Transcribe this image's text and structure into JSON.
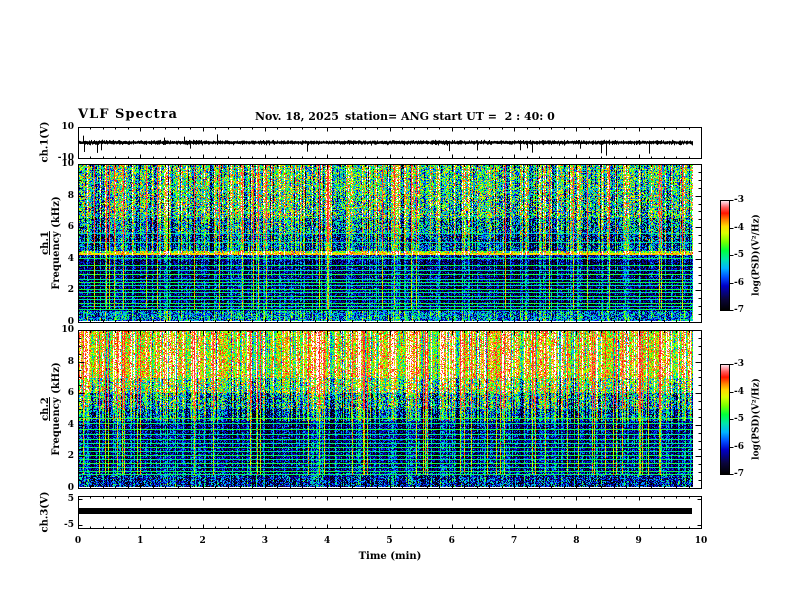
{
  "header": {
    "title": "VLF Spectra",
    "date": "Nov. 18, 2025",
    "station": "station= ANG",
    "start_ut": "start UT =  2 : 40: 0"
  },
  "axes": {
    "x_label": "Time (min)",
    "x_tick_labels": [
      "0",
      "1",
      "2",
      "3",
      "4",
      "5",
      "6",
      "7",
      "8",
      "9",
      "10"
    ],
    "ch1": {
      "label": "ch.1(V)",
      "tick_labels": [
        "10",
        "-10"
      ]
    },
    "spec1": {
      "label_channel": "ch.1",
      "label_axis": "Frequency (kHz)",
      "tick_labels": [
        "10",
        "8",
        "6",
        "4",
        "2",
        "0"
      ]
    },
    "spec2": {
      "label_channel": "ch.2",
      "label_axis": "Frequency (kHz)",
      "tick_labels": [
        "10",
        "8",
        "6",
        "4",
        "2",
        "0"
      ]
    },
    "ch3": {
      "label": "ch.3(V)",
      "tick_labels": [
        "5",
        "-5"
      ]
    }
  },
  "colorbars": [
    {
      "label": "log(PSD)(V²/Hz)",
      "tick_labels": [
        "-3",
        "-4",
        "-5",
        "-6",
        "-7"
      ]
    },
    {
      "label": "log(PSD)(V²/Hz)",
      "tick_labels": [
        "-3",
        "-4",
        "-5",
        "-6",
        "-7"
      ]
    }
  ],
  "chart_data": {
    "type": "heatmap",
    "title": "VLF Spectra",
    "subtitle": "Nov. 18, 2025, station ANG, start UT 2:40:0",
    "x": {
      "label": "Time (min)",
      "range": [
        0,
        10
      ],
      "data_end_min": 9.85,
      "major_tick": 1,
      "minor_tick": 0.2
    },
    "colorbar": {
      "label": "log(PSD)(V²/Hz)",
      "range": [
        -7,
        -3
      ]
    },
    "colormap_stops": [
      [
        0.0,
        "#000000"
      ],
      [
        0.1,
        "#0a053c"
      ],
      [
        0.22,
        "#0000c8"
      ],
      [
        0.3,
        "#0050ff"
      ],
      [
        0.38,
        "#00b4ff"
      ],
      [
        0.46,
        "#00e6aa"
      ],
      [
        0.54,
        "#00ff3c"
      ],
      [
        0.62,
        "#78ff00"
      ],
      [
        0.7,
        "#dcff00"
      ],
      [
        0.76,
        "#ffdc00"
      ],
      [
        0.82,
        "#ff8200"
      ],
      [
        0.88,
        "#ff1400"
      ],
      [
        0.93,
        "#ff5a5a"
      ],
      [
        0.97,
        "#ffb4be"
      ],
      [
        1.0,
        "#ffffff"
      ]
    ],
    "panels": [
      {
        "name": "ch.1(V)",
        "kind": "waveform",
        "y_range": [
          -10,
          10
        ],
        "baseline": 0,
        "noise_amp_V": 1.5,
        "down_spikes": 14,
        "up_spikes": 4
      },
      {
        "name": "ch.1 spectrogram",
        "kind": "spectrogram",
        "y_range_kHz": [
          0,
          10
        ],
        "psd_range": [
          -7,
          -3
        ],
        "seed": 42,
        "bands": [
          [
            10.0,
            8.2,
            0.52,
            0.18,
            0
          ],
          [
            8.2,
            6.6,
            0.5,
            0.2,
            0
          ],
          [
            6.6,
            5.6,
            0.36,
            0.18,
            0
          ],
          [
            5.6,
            4.9,
            0.26,
            0.16,
            0.02
          ],
          [
            4.9,
            4.5,
            0.3,
            0.14,
            0
          ],
          [
            4.5,
            4.2,
            0.66,
            0.1,
            0
          ],
          [
            4.2,
            3.9,
            0.22,
            0.12,
            0
          ],
          [
            3.9,
            0.65,
            0.13,
            0.11,
            0
          ],
          [
            0.65,
            0.0,
            0.34,
            0.14,
            0
          ]
        ],
        "h_lines": [
          [
            5.65,
            0.42,
            1
          ],
          [
            5.05,
            0.45,
            1
          ],
          [
            4.35,
            0.74,
            2
          ],
          [
            4.02,
            0.5,
            1
          ],
          [
            3.62,
            0.52,
            1
          ],
          [
            3.3,
            0.46,
            1
          ],
          [
            3.02,
            0.54,
            1
          ],
          [
            2.72,
            0.47,
            1
          ],
          [
            2.5,
            0.52,
            1
          ],
          [
            2.28,
            0.46,
            1
          ],
          [
            2.05,
            0.54,
            1
          ],
          [
            1.85,
            0.48,
            1
          ],
          [
            1.62,
            0.52,
            1
          ],
          [
            1.4,
            0.47,
            1
          ],
          [
            1.18,
            0.54,
            1
          ],
          [
            0.98,
            0.48,
            1
          ],
          [
            0.8,
            0.52,
            1
          ]
        ],
        "streaks": {
          "strong": 0.045,
          "green": 0.3,
          "dark": 0.22
        }
      },
      {
        "name": "ch.2 spectrogram",
        "kind": "spectrogram",
        "y_range_kHz": [
          0,
          10
        ],
        "psd_range": [
          -7,
          -3
        ],
        "seed": 1337,
        "bands": [
          [
            10.0,
            8.5,
            0.7,
            0.13,
            0
          ],
          [
            8.5,
            7.0,
            0.72,
            0.13,
            0
          ],
          [
            7.0,
            6.0,
            0.56,
            0.17,
            0
          ],
          [
            6.0,
            5.0,
            0.38,
            0.18,
            0
          ],
          [
            5.0,
            4.2,
            0.25,
            0.15,
            0
          ],
          [
            4.2,
            0.9,
            0.14,
            0.11,
            0
          ],
          [
            0.9,
            0.0,
            0.18,
            0.15,
            0
          ]
        ],
        "h_lines": [
          [
            4.45,
            0.55,
            1
          ],
          [
            4.1,
            0.5,
            1
          ],
          [
            3.75,
            0.54,
            1
          ],
          [
            3.4,
            0.48,
            1
          ],
          [
            3.1,
            0.52,
            1
          ],
          [
            2.8,
            0.48,
            1
          ],
          [
            2.55,
            0.52,
            1
          ],
          [
            2.3,
            0.48,
            1
          ],
          [
            2.05,
            0.52,
            1
          ],
          [
            1.8,
            0.48,
            1
          ],
          [
            1.55,
            0.54,
            1
          ],
          [
            1.3,
            0.48,
            1
          ],
          [
            1.05,
            0.52,
            1
          ],
          [
            0.85,
            0.5,
            1
          ]
        ],
        "streaks": {
          "strong": 0.06,
          "green": 0.3,
          "dark": 0.18
        }
      },
      {
        "name": "ch.3(V)",
        "kind": "flat",
        "y_range": [
          -6.2,
          6.2
        ],
        "value": 0,
        "line_thickness_V": 2.3
      }
    ]
  }
}
